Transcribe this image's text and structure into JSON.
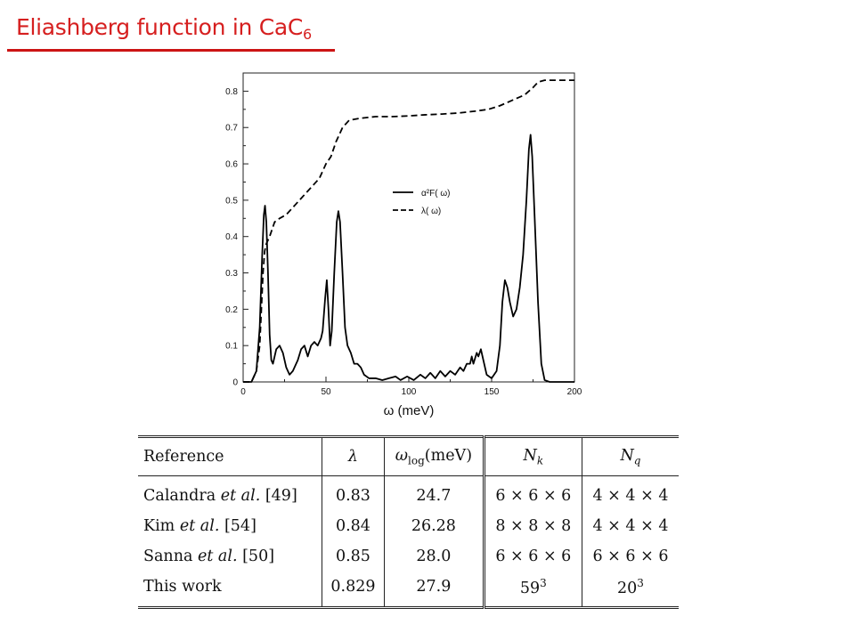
{
  "slide": {
    "title_text": "Eliashberg function in CaC",
    "title_subscript": "6"
  },
  "chart_data": {
    "type": "line",
    "title": "",
    "xlabel": "ω (meV)",
    "ylabel": "",
    "xlim": [
      0,
      200
    ],
    "ylim": [
      0,
      0.85
    ],
    "xticks": [
      "0",
      "50",
      "100",
      "150",
      "200"
    ],
    "yticks": [
      "0",
      "0.1",
      "0.2",
      "0.3",
      "0.4",
      "0.5",
      "0.6",
      "0.7",
      "0.8"
    ],
    "grid": false,
    "legend_position": "center-right",
    "series": [
      {
        "name": "α²F( ω)",
        "style": "solid",
        "points": [
          [
            0,
            0
          ],
          [
            5,
            0
          ],
          [
            8,
            0.03
          ],
          [
            10,
            0.15
          ],
          [
            11.5,
            0.35
          ],
          [
            12.5,
            0.46
          ],
          [
            13.2,
            0.485
          ],
          [
            14,
            0.44
          ],
          [
            15,
            0.3
          ],
          [
            16,
            0.13
          ],
          [
            17,
            0.06
          ],
          [
            18,
            0.05
          ],
          [
            20,
            0.09
          ],
          [
            22,
            0.1
          ],
          [
            24,
            0.08
          ],
          [
            26,
            0.04
          ],
          [
            28,
            0.02
          ],
          [
            30,
            0.03
          ],
          [
            33,
            0.06
          ],
          [
            35,
            0.09
          ],
          [
            37,
            0.1
          ],
          [
            39,
            0.07
          ],
          [
            41,
            0.1
          ],
          [
            43,
            0.11
          ],
          [
            45,
            0.1
          ],
          [
            47,
            0.12
          ],
          [
            48,
            0.14
          ],
          [
            49.5,
            0.23
          ],
          [
            50.5,
            0.28
          ],
          [
            51.5,
            0.2
          ],
          [
            52.5,
            0.1
          ],
          [
            53.5,
            0.14
          ],
          [
            55,
            0.3
          ],
          [
            56.5,
            0.44
          ],
          [
            57.5,
            0.47
          ],
          [
            58.5,
            0.44
          ],
          [
            60,
            0.3
          ],
          [
            61.5,
            0.15
          ],
          [
            63,
            0.1
          ],
          [
            65,
            0.08
          ],
          [
            67,
            0.05
          ],
          [
            69,
            0.05
          ],
          [
            71,
            0.04
          ],
          [
            73,
            0.02
          ],
          [
            76,
            0.01
          ],
          [
            80,
            0.01
          ],
          [
            84,
            0.005
          ],
          [
            88,
            0.01
          ],
          [
            92,
            0.015
          ],
          [
            95,
            0.005
          ],
          [
            99,
            0.015
          ],
          [
            103,
            0.005
          ],
          [
            107,
            0.02
          ],
          [
            110,
            0.01
          ],
          [
            113,
            0.025
          ],
          [
            116,
            0.01
          ],
          [
            119,
            0.03
          ],
          [
            122,
            0.015
          ],
          [
            125,
            0.03
          ],
          [
            128,
            0.02
          ],
          [
            131,
            0.04
          ],
          [
            133,
            0.03
          ],
          [
            135,
            0.05
          ],
          [
            137,
            0.05
          ],
          [
            138,
            0.07
          ],
          [
            139,
            0.05
          ],
          [
            141,
            0.08
          ],
          [
            142,
            0.07
          ],
          [
            143.5,
            0.09
          ],
          [
            145,
            0.06
          ],
          [
            147,
            0.02
          ],
          [
            150,
            0.01
          ],
          [
            153,
            0.03
          ],
          [
            155,
            0.1
          ],
          [
            156.5,
            0.22
          ],
          [
            158,
            0.28
          ],
          [
            159.5,
            0.26
          ],
          [
            161,
            0.22
          ],
          [
            163,
            0.18
          ],
          [
            165,
            0.2
          ],
          [
            167,
            0.26
          ],
          [
            169,
            0.35
          ],
          [
            171,
            0.5
          ],
          [
            172.5,
            0.64
          ],
          [
            173.5,
            0.68
          ],
          [
            174.5,
            0.62
          ],
          [
            176,
            0.45
          ],
          [
            178,
            0.22
          ],
          [
            180,
            0.05
          ],
          [
            182,
            0.005
          ],
          [
            185,
            0
          ],
          [
            200,
            0
          ]
        ]
      },
      {
        "name": "λ( ω)",
        "style": "dashed",
        "points": [
          [
            0,
            0
          ],
          [
            5,
            0
          ],
          [
            8,
            0.03
          ],
          [
            10,
            0.1
          ],
          [
            11,
            0.2
          ],
          [
            12,
            0.3
          ],
          [
            13,
            0.36
          ],
          [
            14,
            0.38
          ],
          [
            16,
            0.4
          ],
          [
            19,
            0.44
          ],
          [
            22,
            0.45
          ],
          [
            26,
            0.46
          ],
          [
            30,
            0.48
          ],
          [
            34,
            0.5
          ],
          [
            38,
            0.52
          ],
          [
            42,
            0.54
          ],
          [
            46,
            0.56
          ],
          [
            50,
            0.6
          ],
          [
            53,
            0.62
          ],
          [
            56,
            0.66
          ],
          [
            58,
            0.68
          ],
          [
            60,
            0.7
          ],
          [
            64,
            0.72
          ],
          [
            70,
            0.725
          ],
          [
            80,
            0.73
          ],
          [
            90,
            0.73
          ],
          [
            100,
            0.732
          ],
          [
            110,
            0.735
          ],
          [
            120,
            0.737
          ],
          [
            130,
            0.74
          ],
          [
            140,
            0.745
          ],
          [
            148,
            0.75
          ],
          [
            155,
            0.76
          ],
          [
            160,
            0.77
          ],
          [
            165,
            0.78
          ],
          [
            170,
            0.79
          ],
          [
            175,
            0.81
          ],
          [
            178,
            0.825
          ],
          [
            182,
            0.83
          ],
          [
            200,
            0.83
          ]
        ]
      }
    ]
  },
  "table": {
    "headers": {
      "reference": "Reference",
      "lambda": "λ",
      "wlog_symbol": "ω",
      "wlog_sub": "log",
      "wlog_unit": "(meV)",
      "nk_symbol": "N",
      "nk_sub": "k",
      "nq_symbol": "N",
      "nq_sub": "q"
    },
    "rows": [
      {
        "name": "Calandra",
        "etal": "et al.",
        "ref": "[49]",
        "lambda": "0.83",
        "wlog": "24.7",
        "nk": "6 × 6 × 6",
        "nq": "4 × 4 × 4"
      },
      {
        "name": "Kim",
        "etal": "et al.",
        "ref": "[54]",
        "lambda": "0.84",
        "wlog": "26.28",
        "nk": "8 × 8 × 8",
        "nq": "4 × 4 × 4"
      },
      {
        "name": "Sanna",
        "etal": "et al.",
        "ref": "[50]",
        "lambda": "0.85",
        "wlog": "28.0",
        "nk": "6 × 6 × 6",
        "nq": "6 × 6 × 6"
      }
    ],
    "last_row": {
      "name": "This work",
      "lambda": "0.829",
      "wlog": "27.9",
      "nk_base": "59",
      "nk_exp": "3",
      "nq_base": "20",
      "nq_exp": "3"
    }
  }
}
